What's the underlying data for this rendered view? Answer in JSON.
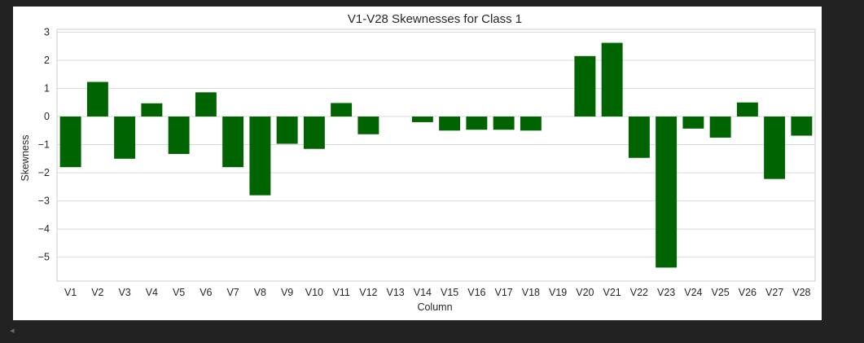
{
  "chart_data": {
    "type": "bar",
    "title": "V1-V28 Skewnesses for Class 1",
    "xlabel": "Column",
    "ylabel": "Skewness",
    "categories": [
      "V1",
      "V2",
      "V3",
      "V4",
      "V5",
      "V6",
      "V7",
      "V8",
      "V9",
      "V10",
      "V11",
      "V12",
      "V13",
      "V14",
      "V15",
      "V16",
      "V17",
      "V18",
      "V19",
      "V20",
      "V21",
      "V22",
      "V23",
      "V24",
      "V25",
      "V26",
      "V27",
      "V28"
    ],
    "values": [
      -1.8,
      1.23,
      -1.5,
      0.47,
      -1.33,
      0.86,
      -1.8,
      -2.8,
      -0.97,
      -1.15,
      0.48,
      -0.63,
      0.0,
      -0.2,
      -0.5,
      -0.47,
      -0.47,
      -0.5,
      0.0,
      2.15,
      2.62,
      -1.47,
      -5.37,
      -0.43,
      -0.75,
      0.5,
      -2.22,
      -0.68
    ],
    "ylim": [
      -5.85,
      3.1
    ],
    "yticks": [
      3,
      2,
      1,
      0,
      -1,
      -2,
      -3,
      -4,
      -5
    ],
    "ytick_labels": [
      "3",
      "2",
      "1",
      "0",
      "−1",
      "−2",
      "−3",
      "−4",
      "−5"
    ],
    "grid": true,
    "colors": {
      "bar": "#006400",
      "grid": "#d9d9d9",
      "axes_edge": "#cccccc",
      "background": "#ffffff",
      "page": "#222222"
    }
  },
  "ui": {
    "scroll_left_icon": "scroll-left-icon",
    "scroll_left_glyph": "◂"
  }
}
